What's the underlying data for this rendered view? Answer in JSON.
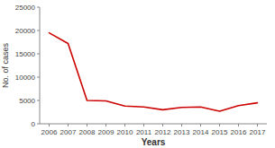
{
  "chart_data": {
    "type": "line",
    "x": [
      2006,
      2007,
      2008,
      2009,
      2010,
      2011,
      2012,
      2013,
      2014,
      2015,
      2016,
      2017
    ],
    "values": [
      19500,
      17200,
      5000,
      4900,
      3800,
      3600,
      3000,
      3500,
      3600,
      2700,
      3900,
      4500
    ],
    "color": "#cc0000",
    "xlabel": "Years",
    "ylabel": "No. of cases",
    "xlim": [
      2005.5,
      2017.5
    ],
    "xticks": [
      2006,
      2007,
      2008,
      2009,
      2010,
      2011,
      2012,
      2013,
      2014,
      2015,
      2016,
      2017
    ],
    "ylim": [
      0,
      25000
    ],
    "yticks": [
      0,
      5000,
      10000,
      15000,
      20000,
      25000
    ],
    "grid": false
  }
}
